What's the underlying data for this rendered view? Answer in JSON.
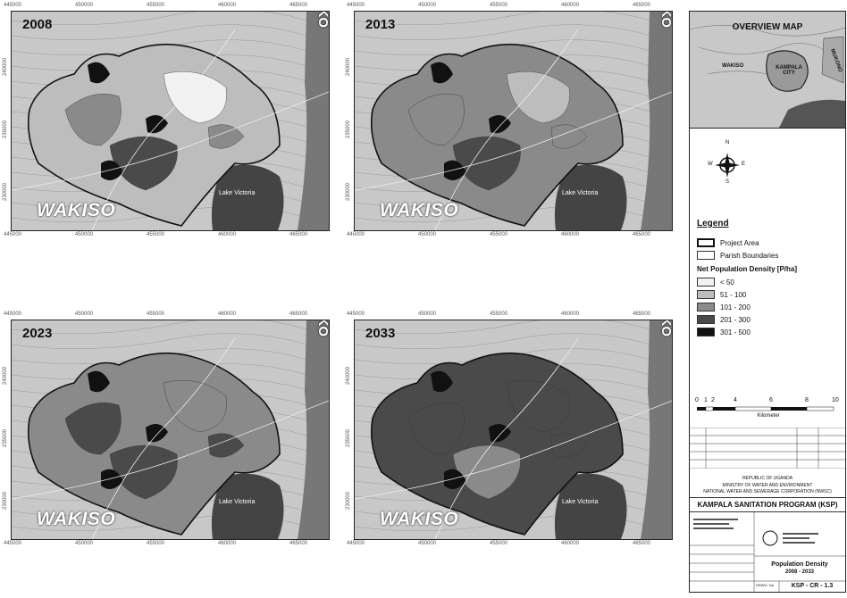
{
  "panels": [
    {
      "year": "2008",
      "wakiso": "WAKISO",
      "mukono": "MUKO",
      "lake": "Lake Victoria"
    },
    {
      "year": "2013",
      "wakiso": "WAKISO",
      "mukono": "MUKO",
      "lake": "Lake Victoria"
    },
    {
      "year": "2023",
      "wakiso": "WAKISO",
      "mukono": "MUKO",
      "lake": "Lake Victoria"
    },
    {
      "year": "2033",
      "wakiso": "WAKISO",
      "mukono": "MUKO",
      "lake": "Lake Victoria"
    }
  ],
  "x_ticks": [
    "445000",
    "450000",
    "455000",
    "460000",
    "465000"
  ],
  "y_ticks": [
    "240000",
    "235000",
    "230000"
  ],
  "overview": {
    "title": "OVERVIEW MAP",
    "wakiso": "WAKISO",
    "kampala": "KAMPALA CITY",
    "mukono": "MUKONO"
  },
  "legend": {
    "title": "Legend",
    "project_area": "Project Area",
    "parish": "Parish Boundaries",
    "density_title": "Net Population Density [P/ha]",
    "classes": [
      {
        "label": "< 50",
        "color": "#f2f2f2"
      },
      {
        "label": "51 - 100",
        "color": "#bdbdbd"
      },
      {
        "label": "101 - 200",
        "color": "#8a8a8a"
      },
      {
        "label": "201 - 300",
        "color": "#4a4a4a"
      },
      {
        "label": "301 - 500",
        "color": "#111111"
      }
    ]
  },
  "scale": {
    "ticks": [
      "0",
      "1",
      "2",
      "4",
      "6",
      "8",
      "10"
    ],
    "unit": "Kilometer"
  },
  "title_block": {
    "republic": "REPUBLIC OF UGANDA",
    "ministry": "MINISTRY OF WATER AND ENVIRONMENT",
    "nwsc": "NATIONAL WATER AND SEWERAGE CORPORATION (NWSC)",
    "program": "KAMPALA SANITATION PROGRAM (KSP)",
    "drawing_title": "Population Density",
    "drawing_range": "2008 - 2033",
    "drawing_no_label": "DRWG. No.",
    "drawing_no": "KSP - CR - 1.3",
    "compass": {
      "n": "N",
      "s": "S",
      "e": "E",
      "w": "W"
    }
  }
}
